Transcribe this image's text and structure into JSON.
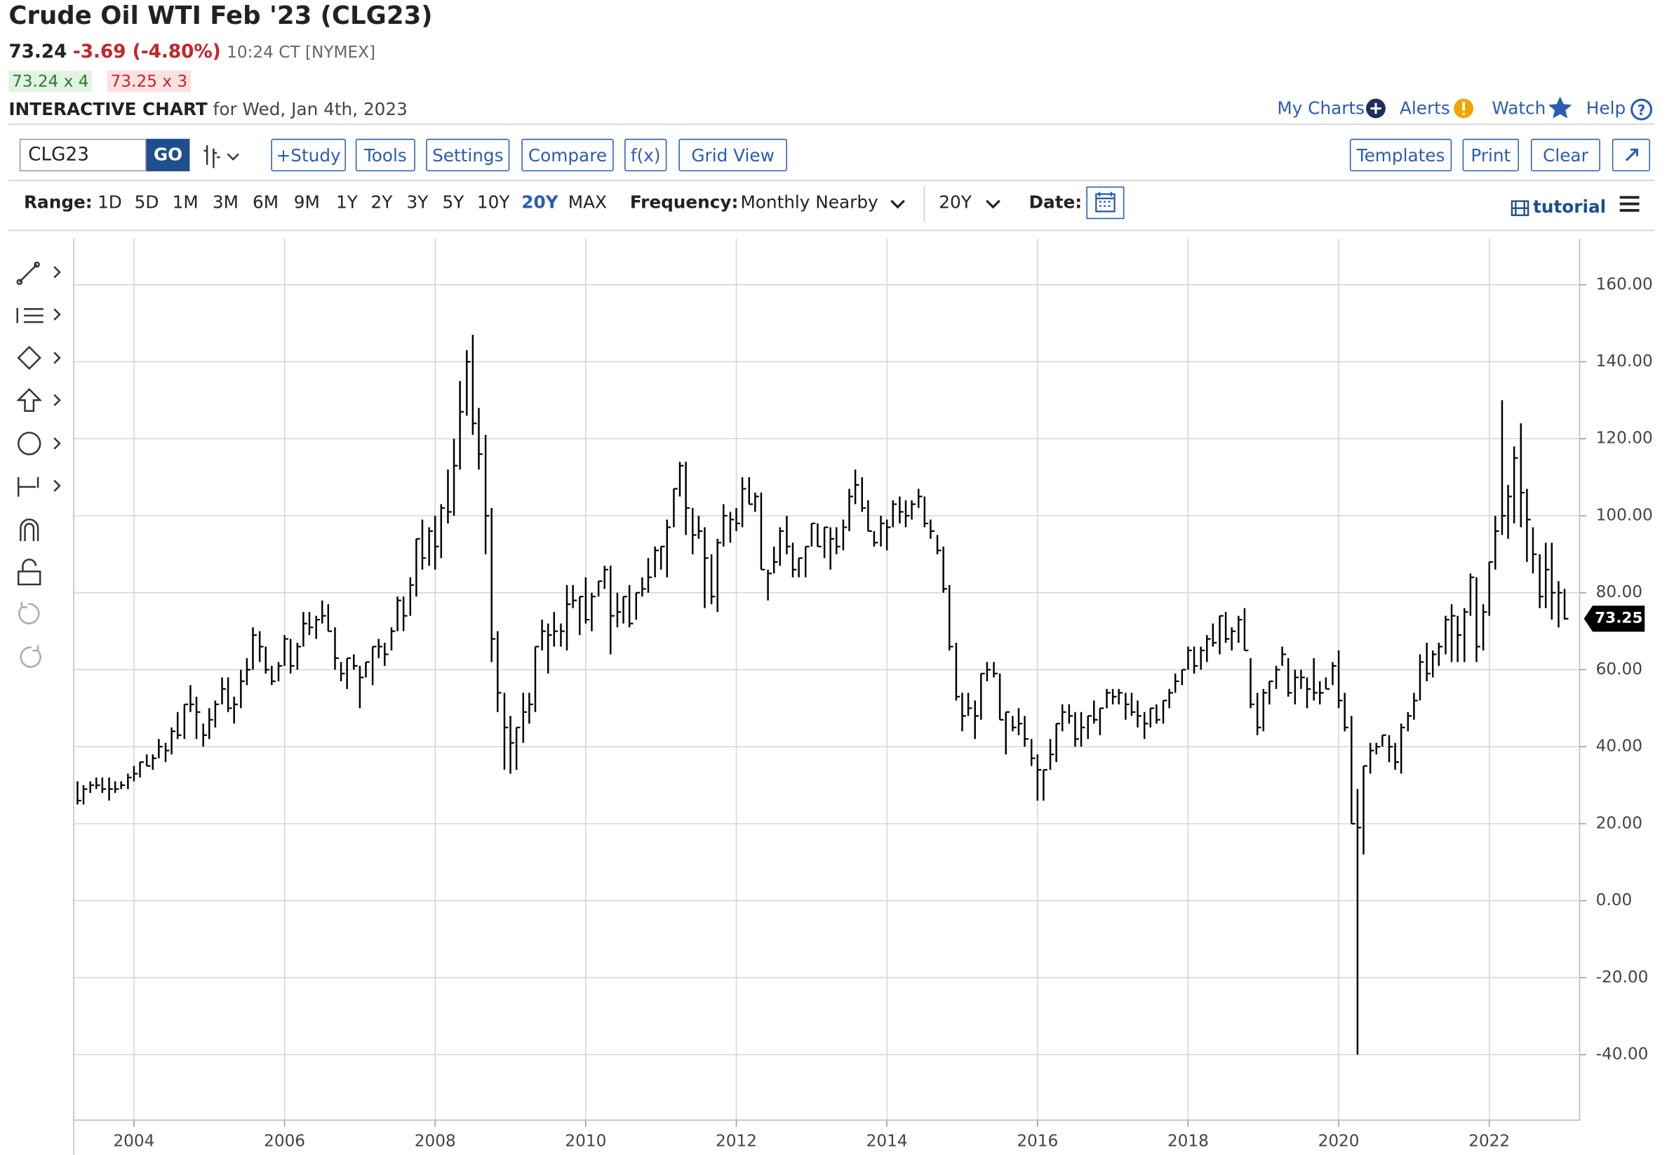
{
  "header": {
    "title": "Crude Oil WTI Feb '23 (CLG23)",
    "last": "73.24",
    "change": "-3.69 (-4.80%)",
    "time": "10:24 CT [NYMEX]",
    "bid": "73.24 x 4",
    "ask": "73.25 x 3",
    "label": "INTERACTIVE CHART",
    "date": "for Wed, Jan 4th, 2023"
  },
  "nav": [
    "My Charts",
    "Alerts",
    "Watch",
    "Help"
  ],
  "toolbar": {
    "symbol": "CLG23",
    "go": "GO",
    "buttons": [
      "+Study",
      "Tools",
      "Settings",
      "Compare",
      "f(x)",
      "Grid View"
    ],
    "right_buttons": [
      "Templates",
      "Print",
      "Clear"
    ]
  },
  "controls": {
    "range_label": "Range:",
    "ranges": [
      "1D",
      "5D",
      "1M",
      "3M",
      "6M",
      "9M",
      "1Y",
      "2Y",
      "3Y",
      "5Y",
      "10Y",
      "20Y",
      "MAX"
    ],
    "frequency_label": "Frequency:",
    "frequency": "Monthly Nearby",
    "period": "20Y",
    "date_label": "Date:",
    "tutorial": "tutorial"
  },
  "chart_data": {
    "type": "ohlc",
    "color": "#000000",
    "grid": true,
    "xlim": [
      2003.2,
      2023.2
    ],
    "xticks": [
      2004,
      2006,
      2008,
      2010,
      2012,
      2014,
      2016,
      2018,
      2020,
      2022
    ],
    "ylim": [
      -57,
      172
    ],
    "yticks": [
      {
        "value": -40,
        "label": "-40.00"
      },
      {
        "value": -20,
        "label": "-20.00"
      },
      {
        "value": 0,
        "label": "0.00"
      },
      {
        "value": 20,
        "label": "20.00"
      },
      {
        "value": 40,
        "label": "40.00"
      },
      {
        "value": 60,
        "label": "60.00"
      },
      {
        "value": 80,
        "label": "80.00"
      },
      {
        "value": 100,
        "label": "100.00"
      },
      {
        "value": 120,
        "label": "120.00"
      },
      {
        "value": 140,
        "label": "140.00"
      },
      {
        "value": 160,
        "label": "160.00"
      }
    ],
    "x": [
      2003.25,
      2003.33,
      2003.42,
      2003.5,
      2003.58,
      2003.67,
      2003.75,
      2003.83,
      2003.92,
      2004,
      2004.08,
      2004.17,
      2004.25,
      2004.33,
      2004.42,
      2004.5,
      2004.58,
      2004.67,
      2004.75,
      2004.83,
      2004.92,
      2005,
      2005.08,
      2005.17,
      2005.25,
      2005.33,
      2005.42,
      2005.5,
      2005.58,
      2005.67,
      2005.75,
      2005.83,
      2005.92,
      2006,
      2006.08,
      2006.17,
      2006.25,
      2006.33,
      2006.42,
      2006.5,
      2006.58,
      2006.67,
      2006.75,
      2006.83,
      2006.92,
      2007,
      2007.08,
      2007.17,
      2007.25,
      2007.33,
      2007.42,
      2007.5,
      2007.58,
      2007.67,
      2007.75,
      2007.83,
      2007.92,
      2008,
      2008.08,
      2008.17,
      2008.25,
      2008.33,
      2008.42,
      2008.5,
      2008.58,
      2008.67,
      2008.75,
      2008.83,
      2008.92,
      2009,
      2009.08,
      2009.17,
      2009.25,
      2009.33,
      2009.42,
      2009.5,
      2009.58,
      2009.67,
      2009.75,
      2009.83,
      2009.92,
      2010,
      2010.08,
      2010.17,
      2010.25,
      2010.33,
      2010.42,
      2010.5,
      2010.58,
      2010.67,
      2010.75,
      2010.83,
      2010.92,
      2011,
      2011.08,
      2011.17,
      2011.25,
      2011.33,
      2011.42,
      2011.5,
      2011.58,
      2011.67,
      2011.75,
      2011.83,
      2011.92,
      2012,
      2012.08,
      2012.17,
      2012.25,
      2012.33,
      2012.42,
      2012.5,
      2012.58,
      2012.67,
      2012.75,
      2012.83,
      2012.92,
      2013,
      2013.08,
      2013.17,
      2013.25,
      2013.33,
      2013.42,
      2013.5,
      2013.58,
      2013.67,
      2013.75,
      2013.83,
      2013.92,
      2014,
      2014.08,
      2014.17,
      2014.25,
      2014.33,
      2014.42,
      2014.5,
      2014.58,
      2014.67,
      2014.75,
      2014.83,
      2014.92,
      2015,
      2015.08,
      2015.17,
      2015.25,
      2015.33,
      2015.42,
      2015.5,
      2015.58,
      2015.67,
      2015.75,
      2015.83,
      2015.92,
      2016,
      2016.08,
      2016.17,
      2016.25,
      2016.33,
      2016.42,
      2016.5,
      2016.58,
      2016.67,
      2016.75,
      2016.83,
      2016.92,
      2017,
      2017.08,
      2017.17,
      2017.25,
      2017.33,
      2017.42,
      2017.5,
      2017.58,
      2017.67,
      2017.75,
      2017.83,
      2017.92,
      2018,
      2018.08,
      2018.17,
      2018.25,
      2018.33,
      2018.42,
      2018.5,
      2018.58,
      2018.67,
      2018.75,
      2018.83,
      2018.92,
      2019,
      2019.08,
      2019.17,
      2019.25,
      2019.33,
      2019.42,
      2019.5,
      2019.58,
      2019.67,
      2019.75,
      2019.83,
      2019.92,
      2020,
      2020.08,
      2020.17,
      2020.25,
      2020.33,
      2020.42,
      2020.5,
      2020.58,
      2020.67,
      2020.75,
      2020.83,
      2020.92,
      2021,
      2021.08,
      2021.17,
      2021.25,
      2021.33,
      2021.42,
      2021.5,
      2021.58,
      2021.67,
      2021.75,
      2021.83,
      2021.92,
      2022,
      2022.08,
      2022.17,
      2022.25,
      2022.33,
      2022.42,
      2022.5,
      2022.58,
      2022.67,
      2022.75,
      2022.83,
      2022.92,
      2023
    ],
    "high": [
      31,
      30,
      31,
      32,
      32,
      32,
      31,
      31,
      33,
      35,
      36,
      38,
      38,
      42,
      41,
      45,
      49,
      51,
      56,
      53,
      46,
      50,
      52,
      58,
      58,
      53,
      60,
      63,
      71,
      70,
      66,
      61,
      62,
      69,
      68,
      67,
      75,
      75,
      74,
      78,
      77,
      71,
      62,
      63,
      64,
      61,
      62,
      66,
      68,
      67,
      71,
      79,
      79,
      84,
      94,
      99,
      97,
      100,
      103,
      112,
      120,
      135,
      143,
      147,
      128,
      121,
      102,
      70,
      54,
      48,
      45,
      54,
      54,
      66,
      73,
      72,
      75,
      72,
      82,
      82,
      79,
      84,
      80,
      83,
      87,
      87,
      80,
      79,
      82,
      80,
      84,
      89,
      92,
      92,
      99,
      107,
      114,
      114,
      102,
      100,
      97,
      90,
      94,
      103,
      101,
      102,
      110,
      110,
      106,
      106,
      86,
      92,
      97,
      100,
      93,
      89,
      92,
      98,
      98,
      97,
      97,
      97,
      99,
      107,
      112,
      110,
      104,
      96,
      100,
      99,
      104,
      105,
      104,
      104,
      107,
      105,
      99,
      95,
      92,
      82,
      67,
      54,
      54,
      52,
      59,
      62,
      62,
      59,
      49,
      48,
      50,
      48,
      42,
      38,
      34,
      42,
      46,
      51,
      51,
      49,
      49,
      48,
      52,
      50,
      55,
      55,
      55,
      54,
      54,
      52,
      49,
      50,
      51,
      52,
      55,
      59,
      60,
      66,
      66,
      66,
      69,
      72,
      74,
      75,
      71,
      74,
      76,
      63,
      54,
      55,
      57,
      61,
      66,
      63,
      60,
      60,
      58,
      63,
      57,
      58,
      62,
      65,
      54,
      48,
      29,
      35,
      41,
      41,
      43,
      43,
      41,
      46,
      49,
      54,
      64,
      67,
      65,
      67,
      74,
      77,
      74,
      76,
      85,
      84,
      77,
      88,
      100,
      130,
      108,
      118,
      124,
      107,
      97,
      90,
      93,
      93,
      83,
      81
    ],
    "low": [
      25,
      25,
      28,
      29,
      28,
      26,
      28,
      29,
      29,
      31,
      32,
      35,
      34,
      37,
      36,
      38,
      42,
      42,
      49,
      42,
      40,
      42,
      45,
      51,
      49,
      46,
      50,
      56,
      60,
      62,
      59,
      56,
      57,
      61,
      59,
      60,
      66,
      69,
      68,
      72,
      70,
      60,
      57,
      55,
      60,
      50,
      58,
      56,
      63,
      61,
      65,
      70,
      70,
      74,
      79,
      86,
      87,
      86,
      89,
      98,
      100,
      112,
      126,
      121,
      112,
      90,
      62,
      49,
      34,
      33,
      34,
      41,
      46,
      49,
      65,
      59,
      66,
      66,
      65,
      76,
      69,
      72,
      70,
      79,
      81,
      64,
      71,
      72,
      71,
      73,
      79,
      80,
      84,
      86,
      84,
      97,
      105,
      95,
      90,
      94,
      76,
      77,
      75,
      92,
      93,
      96,
      97,
      103,
      101,
      86,
      78,
      85,
      87,
      90,
      84,
      84,
      84,
      92,
      92,
      89,
      86,
      90,
      91,
      96,
      103,
      101,
      96,
      92,
      92,
      91,
      97,
      98,
      97,
      99,
      102,
      97,
      94,
      90,
      80,
      65,
      52,
      44,
      48,
      42,
      47,
      57,
      58,
      47,
      38,
      44,
      43,
      40,
      35,
      26,
      26,
      34,
      36,
      44,
      46,
      40,
      40,
      42,
      46,
      43,
      50,
      51,
      51,
      47,
      48,
      45,
      42,
      45,
      46,
      46,
      50,
      54,
      56,
      60,
      59,
      60,
      62,
      66,
      64,
      67,
      65,
      67,
      65,
      50,
      43,
      44,
      51,
      55,
      61,
      53,
      51,
      55,
      50,
      52,
      51,
      55,
      56,
      50,
      44,
      20,
      -40,
      12,
      33,
      38,
      40,
      36,
      34,
      33,
      44,
      47,
      52,
      57,
      58,
      61,
      64,
      62,
      62,
      62,
      74,
      62,
      65,
      74,
      86,
      95,
      94,
      98,
      97,
      88,
      85,
      76,
      76,
      73,
      71,
      73
    ],
    "close": [
      26,
      29,
      30,
      30,
      29,
      29,
      29,
      30,
      32,
      33,
      36,
      35,
      37,
      40,
      39,
      44,
      43,
      51,
      51,
      49,
      43,
      47,
      51,
      55,
      50,
      51,
      57,
      60,
      69,
      66,
      60,
      57,
      61,
      68,
      61,
      66,
      72,
      71,
      73,
      74,
      70,
      63,
      59,
      63,
      61,
      58,
      62,
      66,
      66,
      64,
      70,
      78,
      74,
      82,
      94,
      89,
      96,
      92,
      102,
      101,
      113,
      127,
      140,
      124,
      116,
      100,
      68,
      54,
      45,
      41,
      45,
      49,
      51,
      66,
      70,
      69,
      70,
      70,
      77,
      78,
      79,
      73,
      79,
      83,
      86,
      74,
      75,
      79,
      72,
      80,
      81,
      84,
      91,
      92,
      97,
      107,
      113,
      102,
      95,
      96,
      89,
      79,
      93,
      100,
      99,
      98,
      107,
      103,
      105,
      86,
      85,
      88,
      96,
      92,
      86,
      89,
      92,
      98,
      92,
      97,
      94,
      92,
      97,
      105,
      108,
      102,
      96,
      93,
      98,
      97,
      103,
      101,
      100,
      103,
      105,
      98,
      96,
      91,
      81,
      66,
      53,
      48,
      50,
      48,
      59,
      60,
      59,
      47,
      49,
      45,
      46,
      42,
      37,
      34,
      34,
      38,
      46,
      49,
      48,
      42,
      45,
      48,
      47,
      50,
      54,
      53,
      54,
      51,
      49,
      48,
      46,
      50,
      47,
      52,
      54,
      57,
      60,
      65,
      61,
      65,
      68,
      67,
      74,
      68,
      70,
      73,
      65,
      51,
      45,
      54,
      57,
      60,
      64,
      54,
      58,
      58,
      55,
      54,
      54,
      55,
      61,
      52,
      45,
      20,
      19,
      35,
      39,
      40,
      43,
      40,
      36,
      45,
      48,
      52,
      62,
      59,
      64,
      66,
      73,
      74,
      69,
      75,
      84,
      66,
      75,
      88,
      96,
      100,
      105,
      115,
      106,
      99,
      90,
      79,
      86,
      80,
      80,
      73.25
    ]
  }
}
